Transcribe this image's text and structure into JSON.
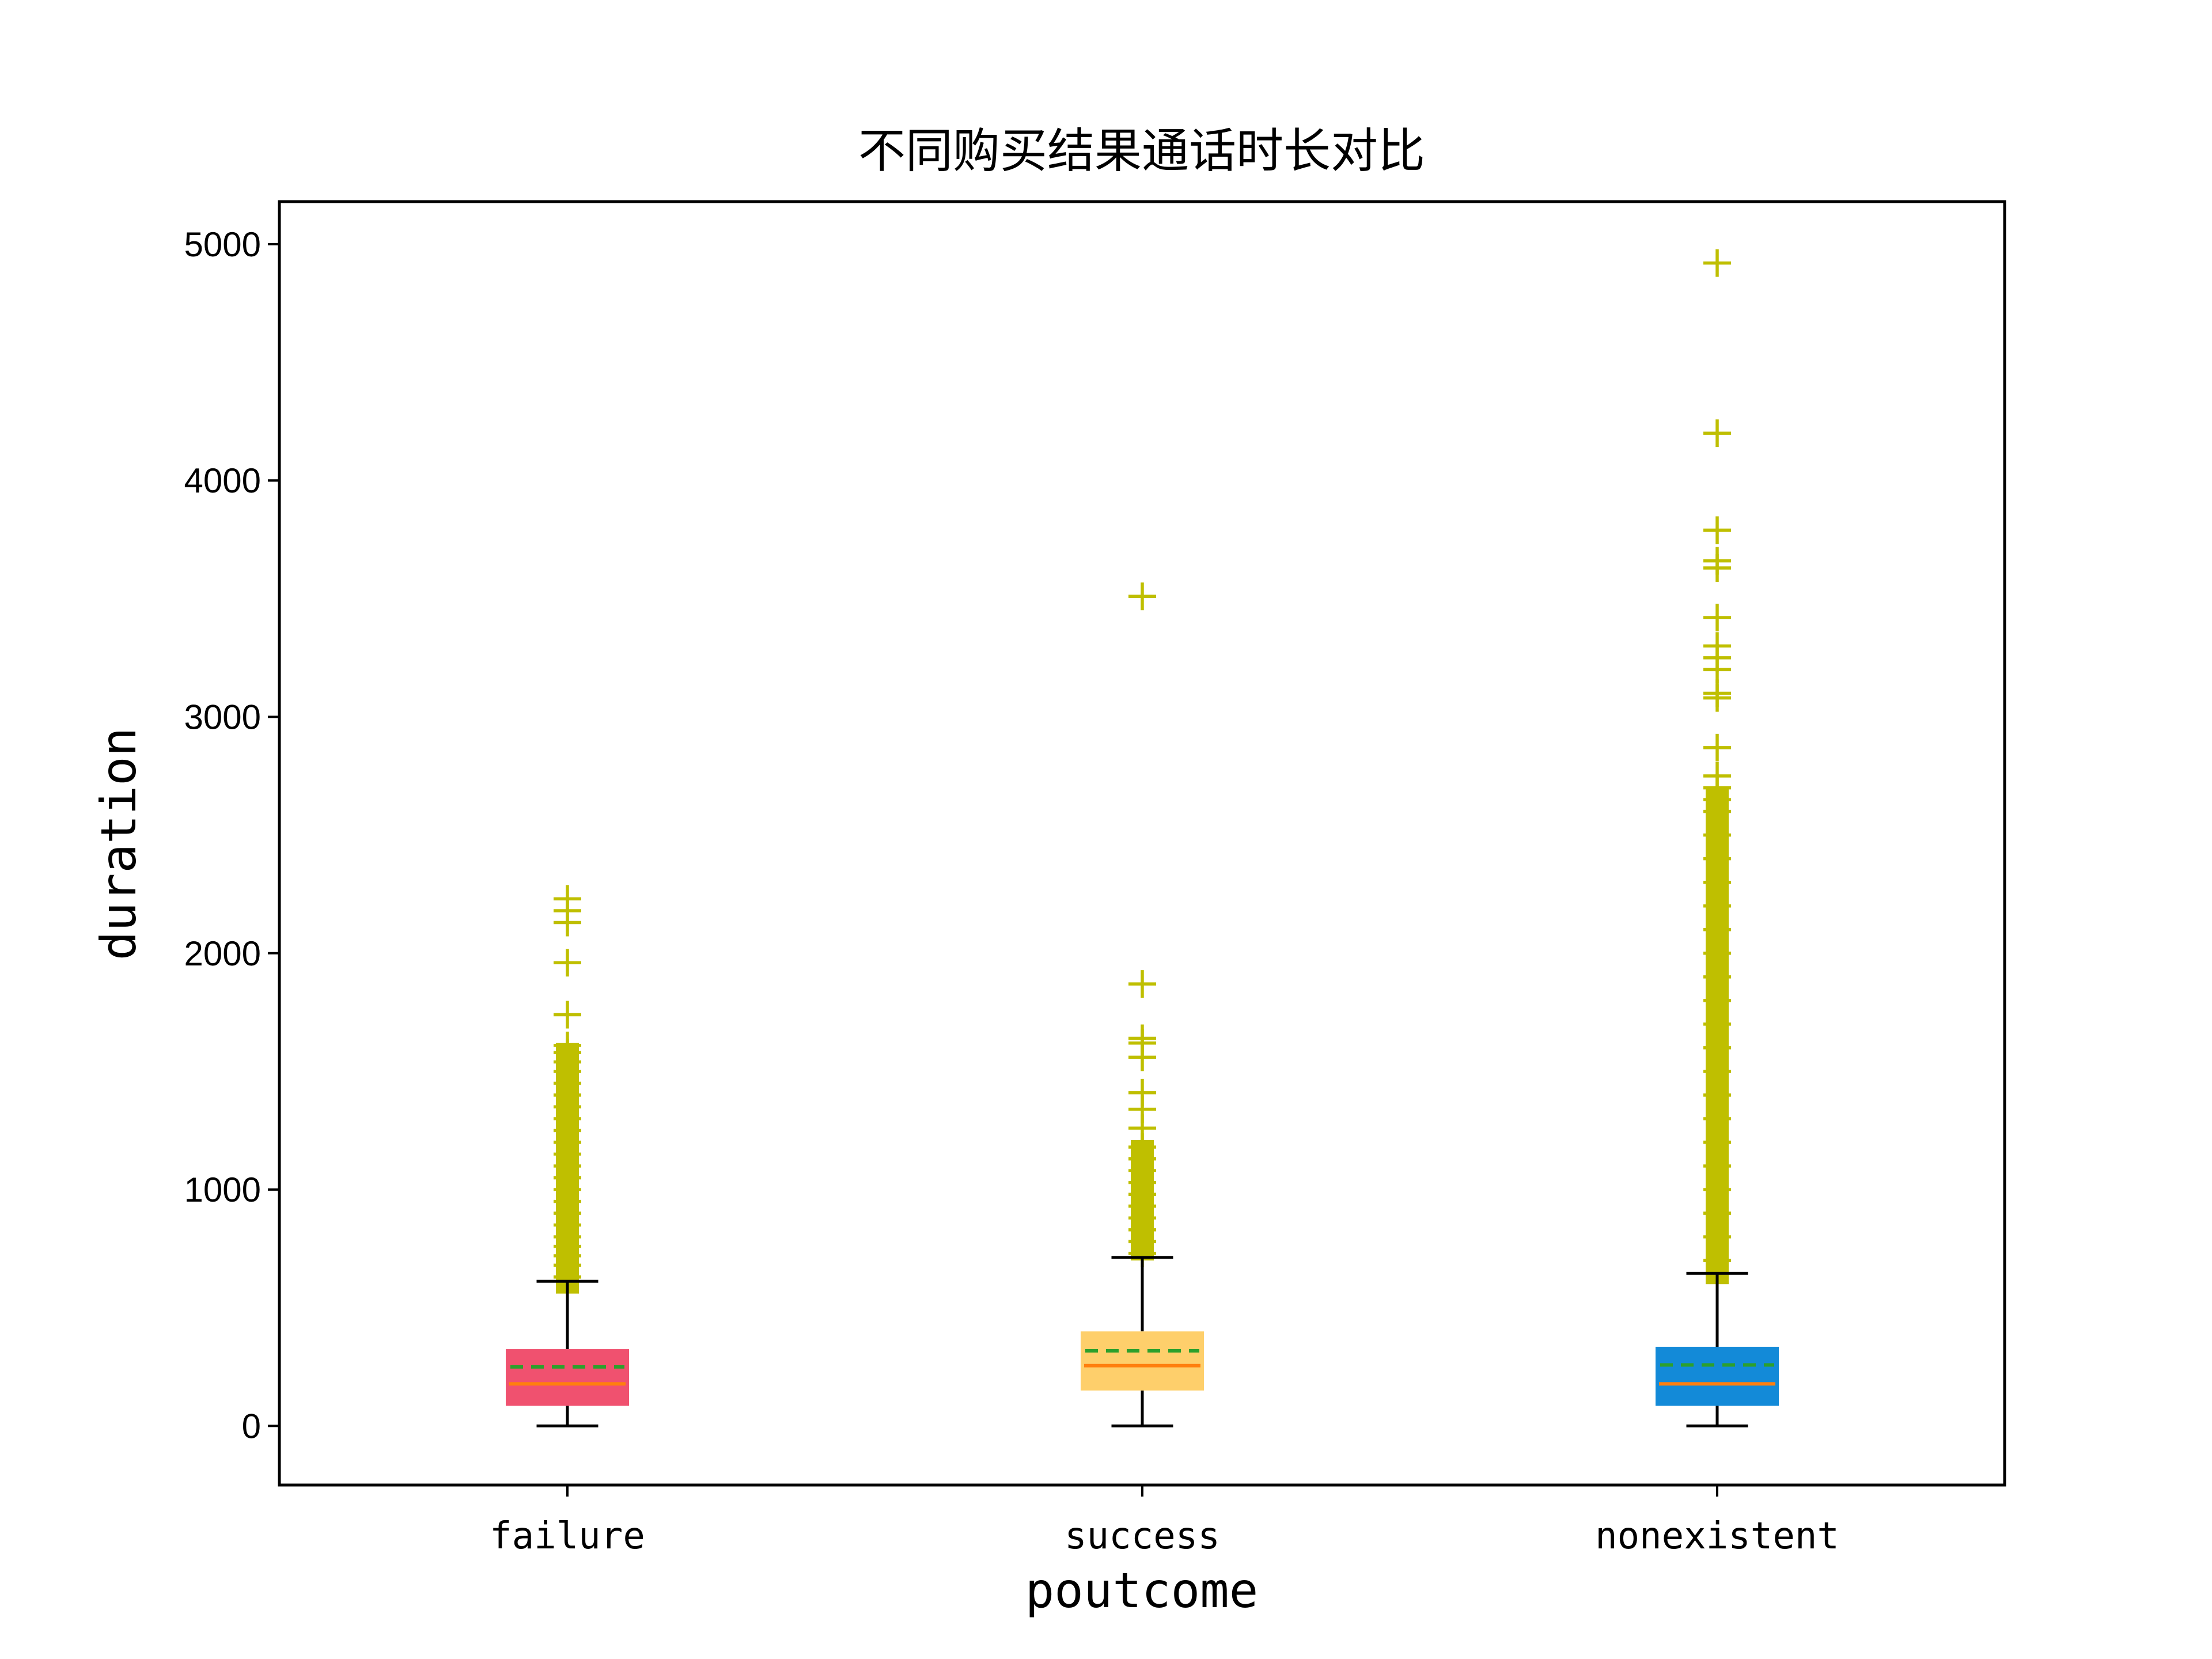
{
  "chart_data": {
    "type": "box",
    "title": "不同购买结果通话时长对比",
    "xlabel": "poutcome",
    "ylabel": "duration",
    "ylim": [
      -250,
      5180
    ],
    "yticks": [
      0,
      1000,
      2000,
      3000,
      4000,
      5000
    ],
    "grid": false,
    "legend": "none",
    "categories": [
      "failure",
      "success",
      "nonexistent"
    ],
    "series": [
      {
        "category": "failure",
        "color": "#f0516f",
        "whisker_low": 0,
        "q1": 85,
        "median": 178,
        "mean": 250,
        "q3": 325,
        "whisker_high": 612,
        "outlier_range": [
          560,
          1620
        ],
        "outliers": [
          630,
          680,
          720,
          760,
          800,
          850,
          900,
          950,
          1000,
          1050,
          1100,
          1150,
          1200,
          1250,
          1300,
          1350,
          1400,
          1450,
          1500,
          1540,
          1580,
          1610,
          1740,
          1960,
          2130,
          2180,
          2230
        ]
      },
      {
        "category": "success",
        "color": "#fecf6b",
        "whisker_low": 0,
        "q1": 150,
        "median": 255,
        "mean": 318,
        "q3": 400,
        "whisker_high": 713,
        "outlier_range": [
          700,
          1210
        ],
        "outliers": [
          730,
          780,
          830,
          880,
          930,
          980,
          1030,
          1080,
          1130,
          1180,
          1260,
          1340,
          1410,
          1560,
          1620,
          1640,
          1870,
          3510
        ]
      },
      {
        "category": "nonexistent",
        "color": "#138ad8",
        "whisker_low": 0,
        "q1": 85,
        "median": 178,
        "mean": 258,
        "q3": 335,
        "whisker_high": 646,
        "outlier_range": [
          600,
          2700
        ],
        "outliers": [
          700,
          800,
          900,
          1000,
          1100,
          1200,
          1300,
          1400,
          1500,
          1600,
          1700,
          1800,
          1900,
          2000,
          2100,
          2200,
          2300,
          2400,
          2500,
          2600,
          2650,
          2700,
          2750,
          2870,
          3080,
          3100,
          3200,
          3250,
          3300,
          3420,
          3630,
          3660,
          3790,
          4200,
          4920
        ]
      }
    ],
    "colors": {
      "median": "#ff7f0e",
      "mean": "#2ca02c",
      "outlier": "#bfbf00",
      "whisker": "#000000"
    }
  }
}
